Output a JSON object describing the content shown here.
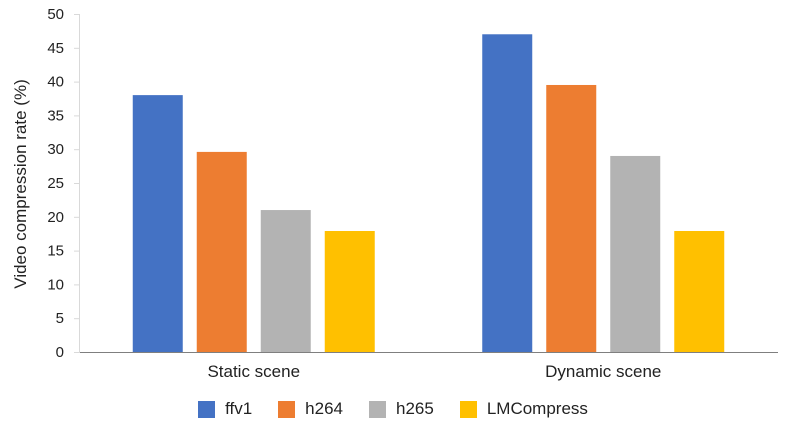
{
  "chart_data": {
    "type": "bar",
    "categories": [
      "Static scene",
      "Dynamic scene"
    ],
    "series": [
      {
        "name": "ffv1",
        "values": [
          38,
          47
        ],
        "color": "#4472C4"
      },
      {
        "name": "h264",
        "values": [
          29.6,
          39.5
        ],
        "color": "#ED7D31"
      },
      {
        "name": "h265",
        "values": [
          21,
          29
        ],
        "color": "#B3B3B3"
      },
      {
        "name": "LMCompress",
        "values": [
          17.9,
          17.9
        ],
        "color": "#FFC000"
      }
    ],
    "ylabel": "Video compression rate (%)",
    "ylim": [
      0,
      50
    ],
    "yticks": [
      0,
      5,
      10,
      15,
      20,
      25,
      30,
      35,
      40,
      45,
      50
    ],
    "grid": false,
    "legend_position": "bottom"
  }
}
